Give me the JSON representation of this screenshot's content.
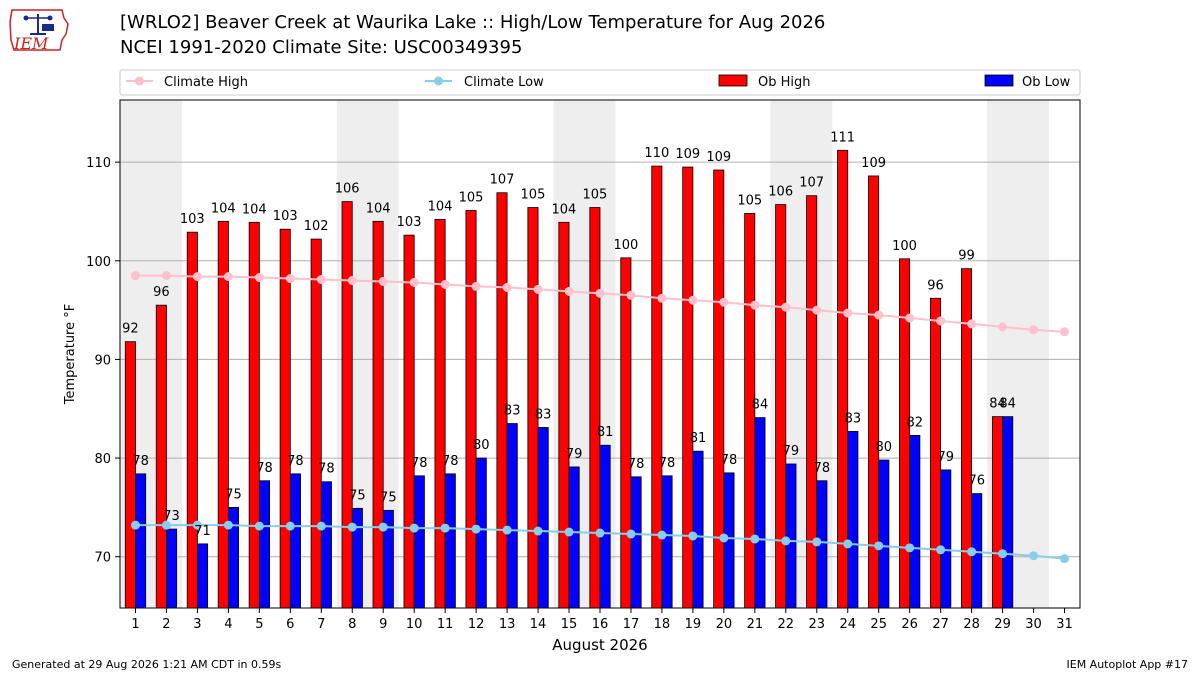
{
  "header": {
    "title_line1": "[WRLO2] Beaver Creek at Waurika Lake :: High/Low Temperature for Aug 2026",
    "title_line2": "NCEI 1991-2020 Climate Site: USC00349395",
    "logo_text": "IEM"
  },
  "footer": {
    "generated": "Generated at 29 Aug 2026 1:21 AM CDT in 0.59s",
    "app": "IEM Autoplot App #17"
  },
  "colors": {
    "ob_high": "#ff0000",
    "ob_low": "#0000ff",
    "climate_high": "#ffc0cb",
    "climate_low": "#87ceeb",
    "weekend_shade": "#eeeeee",
    "logo_red": "#cc2222",
    "logo_blue": "#1a2a8c"
  },
  "chart_data": {
    "type": "bar",
    "title": "[WRLO2] Beaver Creek at Waurika Lake :: High/Low Temperature for Aug 2026",
    "xlabel": "August 2026",
    "ylabel": "Temperature °F",
    "ylim": [
      64.8,
      116.3
    ],
    "xlim": [
      0.5,
      31.5
    ],
    "yticks": [
      70,
      80,
      90,
      100,
      110
    ],
    "categories": [
      "1",
      "2",
      "3",
      "4",
      "5",
      "6",
      "7",
      "8",
      "9",
      "10",
      "11",
      "12",
      "13",
      "14",
      "15",
      "16",
      "17",
      "18",
      "19",
      "20",
      "21",
      "22",
      "23",
      "24",
      "25",
      "26",
      "27",
      "28",
      "29",
      "30",
      "31"
    ],
    "grid": "horizontal",
    "legend_position": "top",
    "shaded_weekends": [
      [
        1,
        2
      ],
      [
        8,
        9
      ],
      [
        15,
        16
      ],
      [
        22,
        23
      ],
      [
        29,
        30
      ]
    ],
    "series": [
      {
        "name": "Climate High",
        "type": "line",
        "values": [
          98.5,
          98.5,
          98.4,
          98.4,
          98.3,
          98.2,
          98.1,
          98.0,
          97.9,
          97.8,
          97.6,
          97.4,
          97.3,
          97.1,
          96.9,
          96.7,
          96.5,
          96.2,
          96.0,
          95.8,
          95.5,
          95.3,
          95.0,
          94.7,
          94.5,
          94.2,
          93.9,
          93.6,
          93.3,
          93.0,
          92.8
        ]
      },
      {
        "name": "Climate Low",
        "type": "line",
        "values": [
          73.2,
          73.2,
          73.2,
          73.2,
          73.1,
          73.1,
          73.1,
          73.0,
          73.0,
          72.9,
          72.9,
          72.8,
          72.7,
          72.6,
          72.5,
          72.4,
          72.3,
          72.2,
          72.1,
          71.9,
          71.8,
          71.6,
          71.5,
          71.3,
          71.1,
          70.9,
          70.7,
          70.5,
          70.3,
          70.1,
          69.8
        ]
      },
      {
        "name": "Ob High",
        "type": "bar",
        "values": [
          91.8,
          95.5,
          102.9,
          104.0,
          103.9,
          103.2,
          102.2,
          106.0,
          104.0,
          102.6,
          104.2,
          105.1,
          106.9,
          105.4,
          103.9,
          105.4,
          100.3,
          109.6,
          109.5,
          109.2,
          104.8,
          105.7,
          106.6,
          111.2,
          108.6,
          100.2,
          96.2,
          99.2,
          84.2,
          null,
          null
        ],
        "labels": [
          "92",
          "96",
          "103",
          "104",
          "104",
          "103",
          "102",
          "106",
          "104",
          "103",
          "104",
          "105",
          "107",
          "105",
          "104",
          "105",
          "100",
          "110",
          "109",
          "109",
          "105",
          "106",
          "107",
          "111",
          "109",
          "100",
          "96",
          "99",
          "84",
          "",
          ""
        ]
      },
      {
        "name": "Ob Low",
        "type": "bar",
        "values": [
          78.4,
          72.8,
          71.3,
          75.0,
          77.7,
          78.4,
          77.6,
          74.9,
          74.7,
          78.2,
          78.4,
          80.0,
          83.5,
          83.1,
          79.1,
          81.3,
          78.1,
          78.2,
          80.7,
          78.5,
          84.1,
          79.4,
          77.7,
          82.7,
          79.8,
          82.3,
          78.8,
          76.4,
          84.2,
          null,
          null
        ],
        "labels": [
          "78",
          "73",
          "71",
          "75",
          "78",
          "78",
          "78",
          "75",
          "75",
          "78",
          "78",
          "80",
          "83",
          "83",
          "79",
          "81",
          "78",
          "78",
          "81",
          "78",
          "84",
          "79",
          "78",
          "83",
          "80",
          "82",
          "79",
          "76",
          "84",
          "",
          ""
        ]
      }
    ]
  }
}
